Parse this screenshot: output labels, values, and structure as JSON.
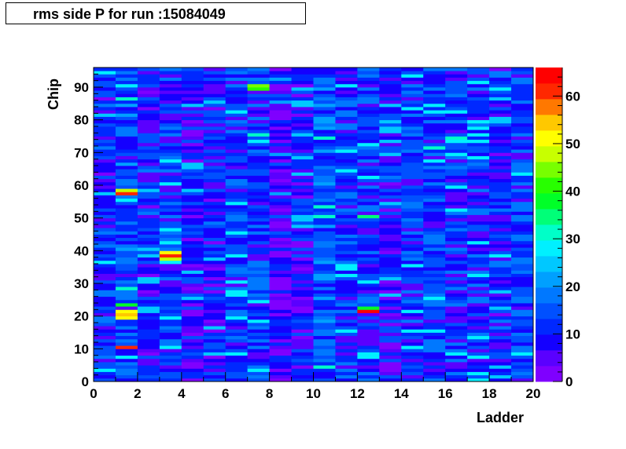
{
  "title": "rms side P for run :15084049",
  "chart_data": {
    "type": "heatmap",
    "title": "rms side P for run :15084049",
    "xlabel": "Ladder",
    "ylabel": "Chip",
    "xlim": [
      0,
      20
    ],
    "ylim": [
      0,
      96
    ],
    "zlim": [
      0,
      66
    ],
    "x_bins": 20,
    "y_bins": 96,
    "x_ticks": [
      0,
      2,
      4,
      6,
      8,
      10,
      12,
      14,
      16,
      18,
      20
    ],
    "y_ticks": [
      0,
      10,
      20,
      30,
      40,
      50,
      60,
      70,
      80,
      90
    ],
    "z_ticks": [
      0,
      10,
      20,
      30,
      40,
      50,
      60
    ],
    "colormap": [
      "#7f00ff",
      "#5a00ff",
      "#1400ff",
      "#0028ff",
      "#0050ff",
      "#0078ff",
      "#00a0ff",
      "#00c8ff",
      "#00f0ff",
      "#00ffc8",
      "#00ff78",
      "#00ff28",
      "#28ff00",
      "#78ff00",
      "#c8ff00",
      "#ffff00",
      "#ffc800",
      "#ff7800",
      "#ff2800",
      "#ff0000"
    ],
    "default_value": 10,
    "column_base": [
      11,
      14,
      10,
      12,
      9,
      10,
      12,
      13,
      7,
      9,
      15,
      12,
      12,
      10,
      12,
      13,
      12,
      12,
      11,
      13
    ],
    "hotspots": [
      {
        "ladder": 1,
        "chip": 58,
        "value": 48
      },
      {
        "ladder": 1,
        "chip": 57,
        "value": 60
      },
      {
        "ladder": 1,
        "chip": 21,
        "value": 50
      },
      {
        "ladder": 1,
        "chip": 20,
        "value": 54
      },
      {
        "ladder": 1,
        "chip": 19,
        "value": 52
      },
      {
        "ladder": 1,
        "chip": 23,
        "value": 38
      },
      {
        "ladder": 1,
        "chip": 10,
        "value": 62
      },
      {
        "ladder": 3,
        "chip": 39,
        "value": 50
      },
      {
        "ladder": 3,
        "chip": 38,
        "value": 62
      },
      {
        "ladder": 3,
        "chip": 37,
        "value": 48
      },
      {
        "ladder": 7,
        "chip": 89,
        "value": 40
      },
      {
        "ladder": 7,
        "chip": 90,
        "value": 46
      },
      {
        "ladder": 7,
        "chip": 75,
        "value": 30
      },
      {
        "ladder": 12,
        "chip": 21,
        "value": 64
      },
      {
        "ladder": 12,
        "chip": 22,
        "value": 38
      },
      {
        "ladder": 12,
        "chip": 50,
        "value": 34
      },
      {
        "ladder": 10,
        "chip": 53,
        "value": 30
      },
      {
        "ladder": 15,
        "chip": 71,
        "value": 30
      },
      {
        "ladder": 16,
        "chip": 74,
        "value": 32
      }
    ]
  }
}
